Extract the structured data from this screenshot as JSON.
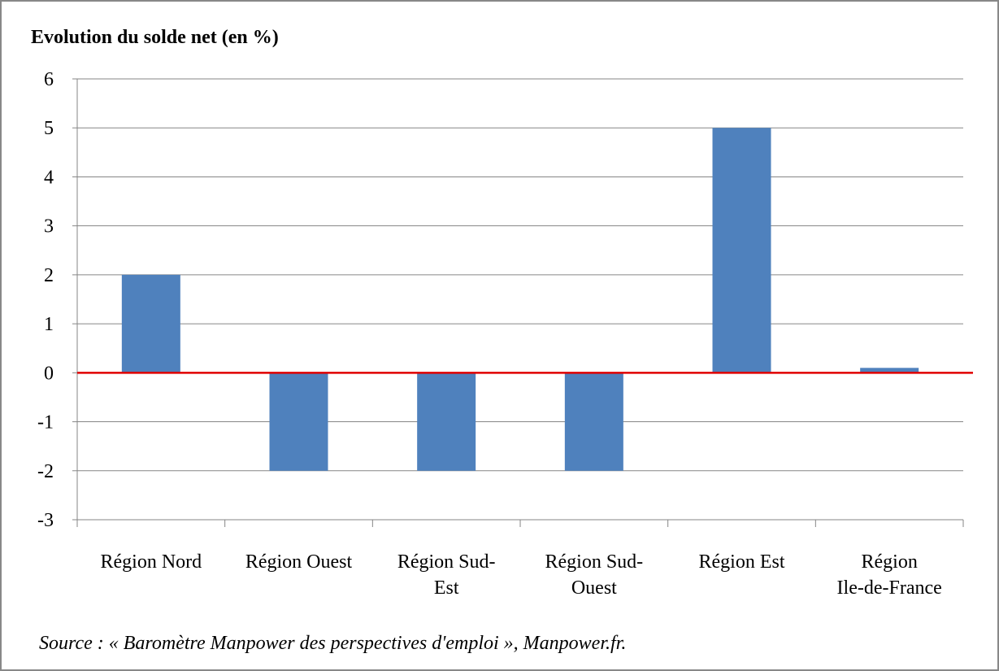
{
  "chart_data": {
    "type": "bar",
    "title": "Evolution du solde net (en %)",
    "categories": [
      "Région Nord",
      "Région Ouest",
      "Région Sud-\nEst",
      "Région Sud-\nOuest",
      "Région Est",
      "Région\nIle-de-France"
    ],
    "values": [
      2,
      -2,
      -2,
      -2,
      5,
      0.1
    ],
    "color": "#4f81bd",
    "ylim": [
      -3,
      6
    ],
    "yticks": [
      -3,
      -2,
      -1,
      0,
      1,
      2,
      3,
      4,
      5,
      6
    ],
    "grid": true,
    "zero_line_color": "#e00000",
    "annotation": "Source : « Baromètre Manpower des perspectives d'emploi », Manpower.fr."
  }
}
